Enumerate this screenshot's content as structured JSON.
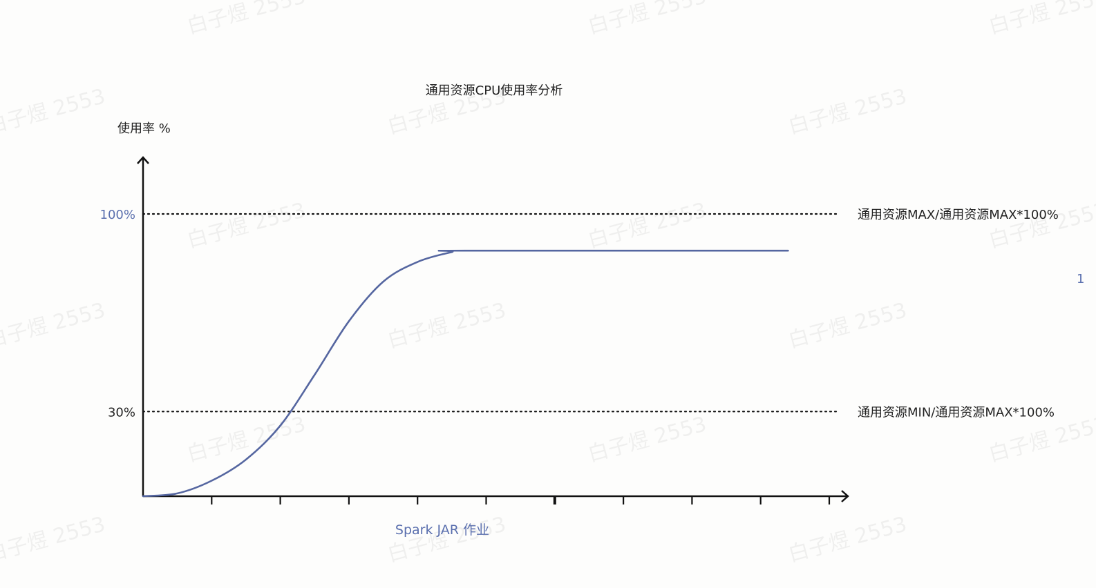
{
  "chart_data": {
    "type": "line",
    "title": "通用资源CPU使用率分析",
    "ylabel": "使用率 %",
    "xlabel": "Spark JAR 作业",
    "ylim": [
      0,
      115
    ],
    "y_ticks": [
      {
        "value": 30,
        "label": "30%",
        "color": "#222222"
      },
      {
        "value": 100,
        "label": "100%",
        "color": "#5a6fae"
      }
    ],
    "reference_lines": [
      {
        "value": 100,
        "label": "通用资源MAX/通用资源MAX*100%",
        "style": "dotted"
      },
      {
        "value": 30,
        "label": "通用资源MIN/通用资源MAX*100%",
        "style": "dotted"
      }
    ],
    "x_tick_count": 10,
    "series": [
      {
        "color": "#5566a0",
        "x": [
          0,
          0.5,
          1.0,
          1.5,
          2.0,
          2.5,
          3.0,
          3.5,
          4.0,
          4.5,
          4.7,
          9.4
        ],
        "y": [
          0,
          1,
          5.5,
          13,
          25,
          43,
          62,
          76,
          83,
          86.5,
          87,
          87
        ]
      }
    ],
    "edge_fragment": "1"
  },
  "watermark": {
    "text": "白子煜 2553"
  },
  "colors": {
    "axis": "#111111",
    "series": "#5566a0",
    "accent_label": "#5a6fae",
    "text": "#222222"
  }
}
